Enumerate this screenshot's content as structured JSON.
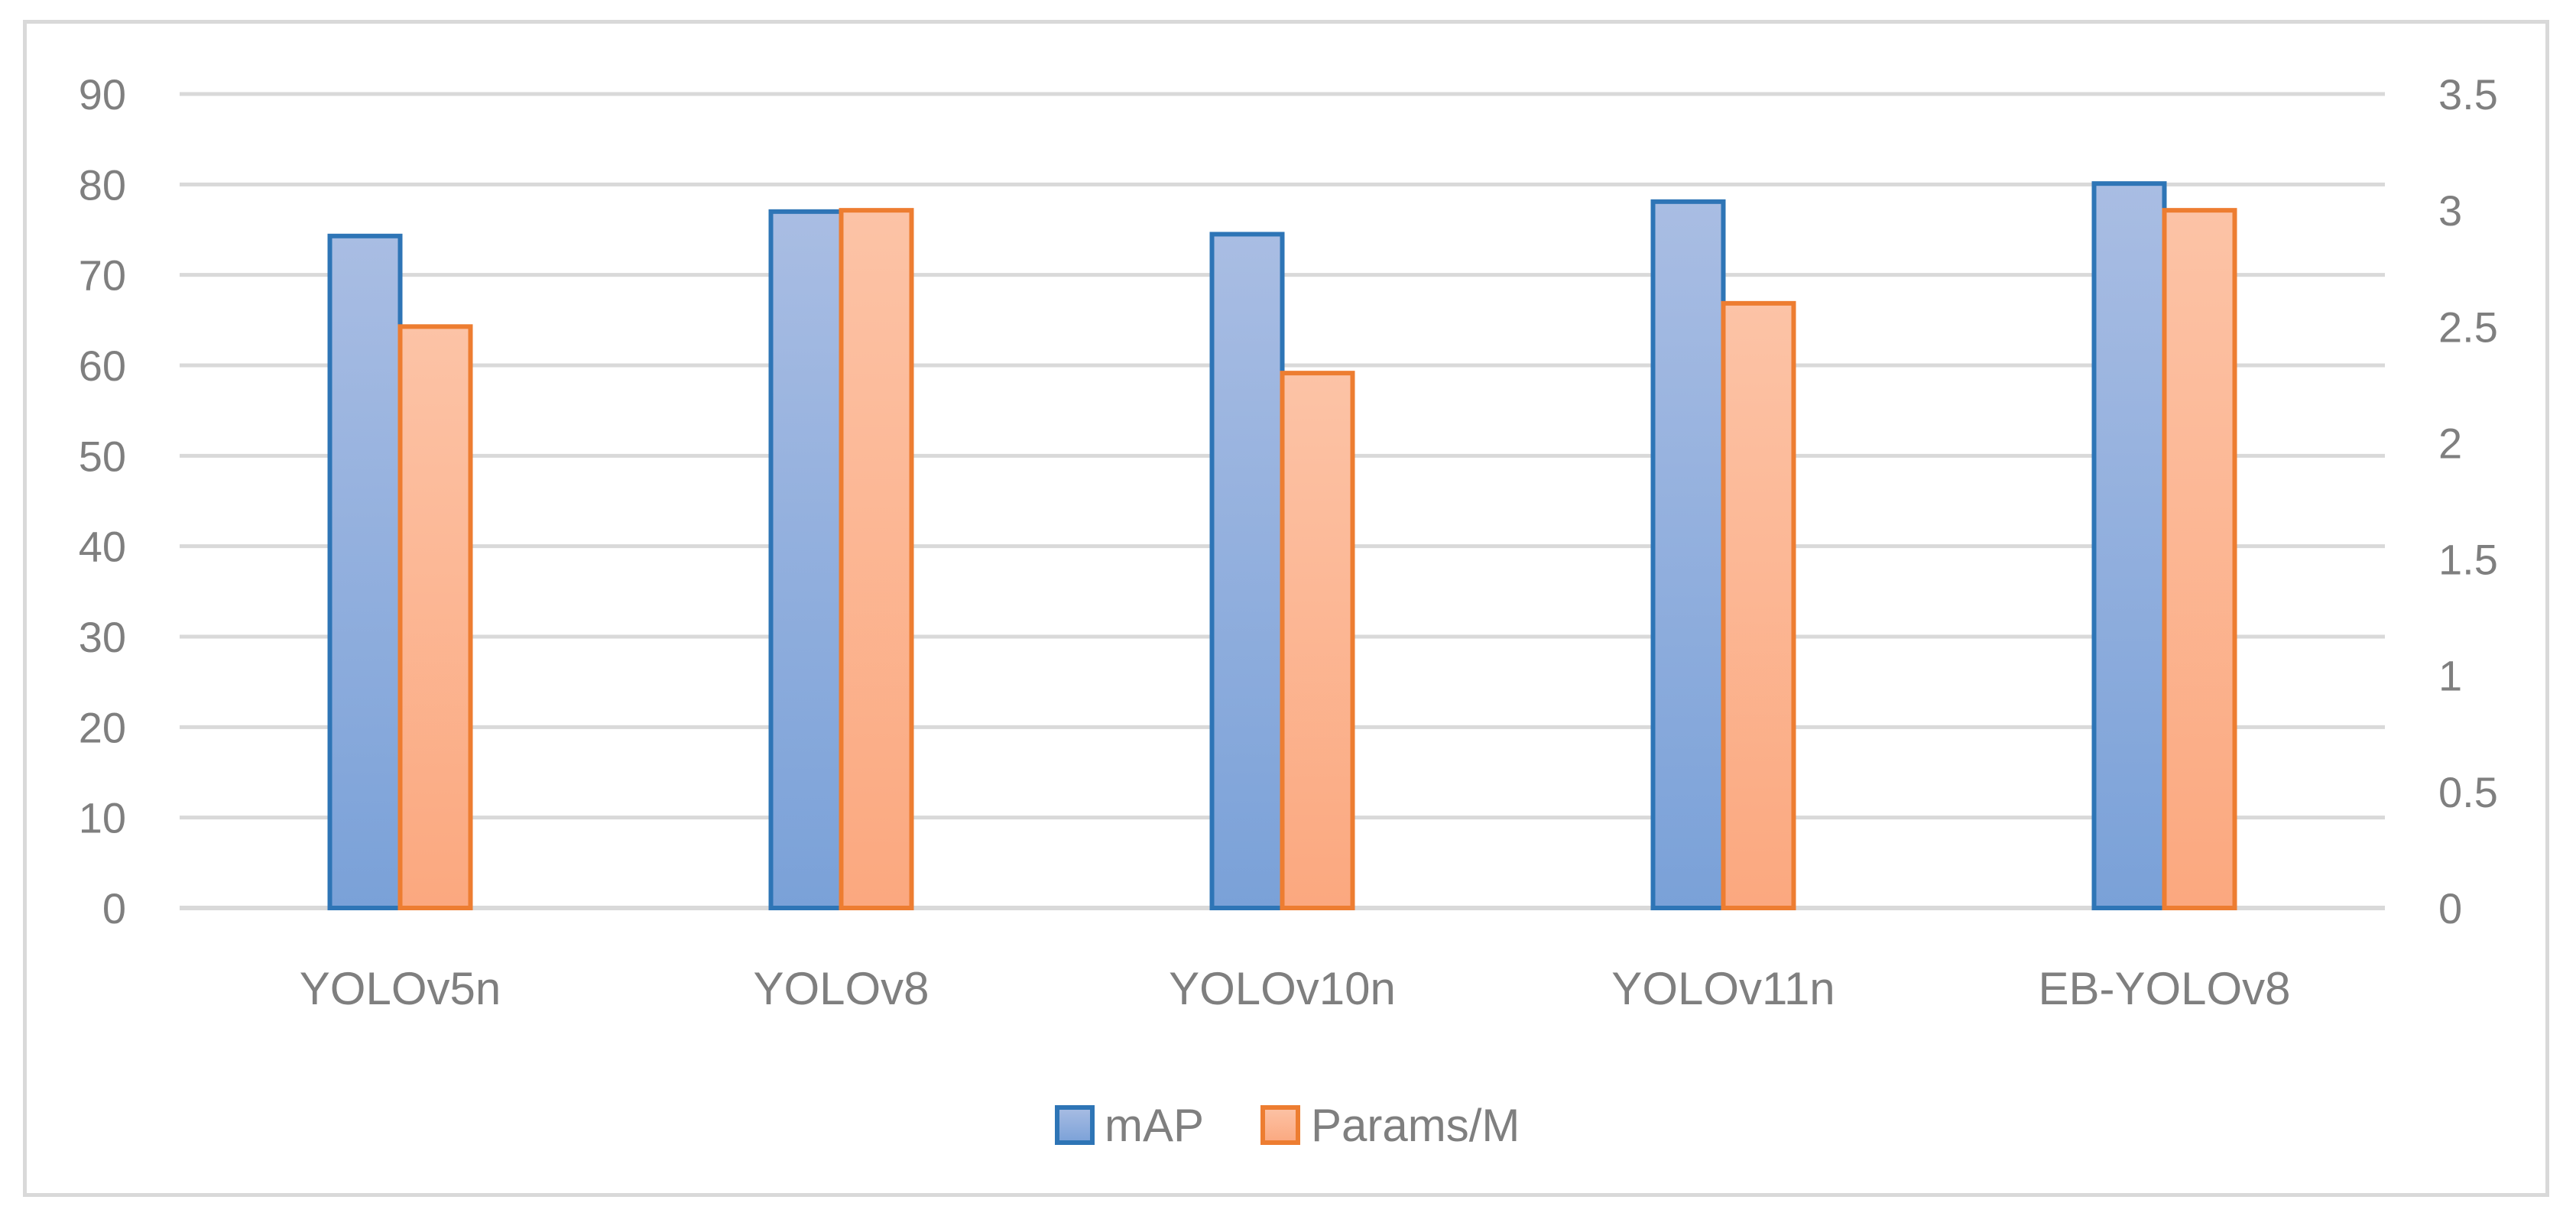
{
  "chart_data": {
    "type": "bar",
    "categories": [
      "YOLOv5n",
      "YOLOv8",
      "YOLOv10n",
      "YOLOv11n",
      "EB-YOLOv8"
    ],
    "series": [
      {
        "name": "mAP",
        "axis": "left",
        "values": [
          74.3,
          77.0,
          74.5,
          78.1,
          80.1
        ]
      },
      {
        "name": "Params/M",
        "axis": "right",
        "values": [
          2.5,
          3.0,
          2.3,
          2.6,
          3.0
        ]
      }
    ],
    "ylim": [
      0,
      90
    ],
    "y_ticks": [
      "0",
      "10",
      "20",
      "30",
      "40",
      "50",
      "60",
      "70",
      "80",
      "90"
    ],
    "y2lim": [
      0,
      3.5
    ],
    "y2_ticks": [
      "0",
      "0.5",
      "1",
      "1.5",
      "2",
      "2.5",
      "3",
      "3.5"
    ],
    "grid": true,
    "legend_position": "bottom",
    "title": "",
    "xlabel": "",
    "ylabel": "",
    "y2label": ""
  },
  "colors": {
    "mAP_fill_top": "#a9bde3",
    "mAP_fill_bottom": "#7aa1d8",
    "mAP_border": "#2e75b6",
    "params_fill_top": "#fcc3a6",
    "params_fill_bottom": "#fba87f",
    "params_border": "#ed7d31",
    "grid": "#d9d9d9",
    "text": "#7f7f7f"
  }
}
